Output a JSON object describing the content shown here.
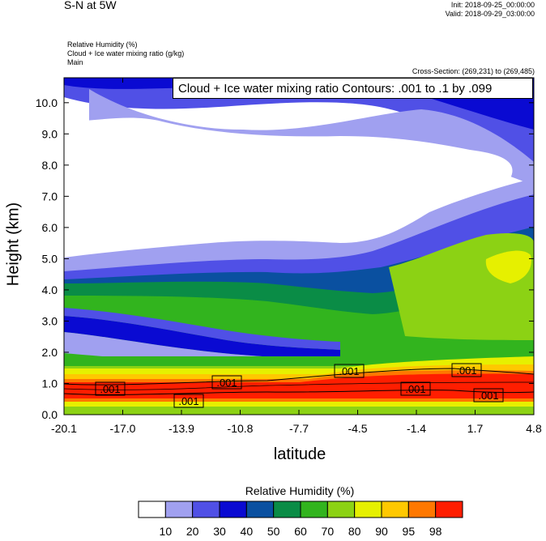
{
  "header": {
    "title": "S-N at 5W",
    "init": "Init: 2018-09-25_00:00:00",
    "valid": "Valid: 2018-09-29_03:00:00",
    "var1": "Relative Humidity   (%)",
    "var2": "Cloud + Ice water mixing ratio   (g/kg)",
    "var3": "Main",
    "cross_section": "Cross-Section: (269,231) to (269,485)"
  },
  "contour_legend": "Cloud + Ice water mixing ratio Contours: .001 to .1 by .099",
  "chart_data": {
    "type": "heatmap",
    "xlabel": "latitude",
    "ylabel": "Height (km)",
    "x_ticks": [
      "-20.1",
      "-17.0",
      "-13.9",
      "-10.8",
      "-7.7",
      "-4.5",
      "-1.4",
      "1.7",
      "4.8"
    ],
    "y_ticks": [
      "0.0",
      "1.0",
      "2.0",
      "3.0",
      "4.0",
      "5.0",
      "6.0",
      "7.0",
      "8.0",
      "9.0",
      "10.0"
    ],
    "xlim": [
      -20.1,
      4.8
    ],
    "ylim": [
      0,
      10.8
    ],
    "colorbar": {
      "title": "Relative Humidity  (%)",
      "labels": [
        "10",
        "20",
        "30",
        "40",
        "50",
        "60",
        "70",
        "80",
        "90",
        "95",
        "98"
      ],
      "colors": [
        "#ffffff",
        "#a0a0f0",
        "#5050e6",
        "#0a0ad2",
        "#0a50a0",
        "#0a8c46",
        "#32b41e",
        "#8cd214",
        "#e6f000",
        "#ffc800",
        "#ff7800",
        "#ff1e00"
      ]
    },
    "contour_labels": [
      ".001",
      ".001",
      ".001",
      ".001",
      ".001",
      ".001",
      ".001"
    ]
  }
}
